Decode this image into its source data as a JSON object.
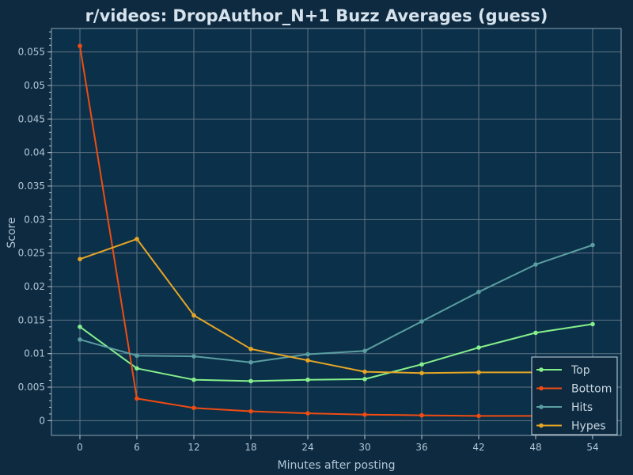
{
  "chart_data": {
    "type": "line",
    "title": "r/videos: DropAuthor_N+1 Buzz Averages (guess)",
    "xlabel": "Minutes after posting",
    "ylabel": "Score",
    "x": [
      0,
      6,
      12,
      18,
      24,
      30,
      36,
      42,
      48,
      54
    ],
    "xlim": [
      -3,
      57
    ],
    "ylim": [
      -0.0022,
      0.0585
    ],
    "yticks": [
      0,
      0.005,
      0.01,
      0.015,
      0.02,
      0.025,
      0.03,
      0.035,
      0.04,
      0.045,
      0.05,
      0.055
    ],
    "ytick_labels": [
      "0",
      "0.005",
      "0.01",
      "0.015",
      "0.02",
      "0.025",
      "0.03",
      "0.035",
      "0.04",
      "0.045",
      "0.05",
      "0.055"
    ],
    "xticks": [
      0,
      6,
      12,
      18,
      24,
      30,
      36,
      42,
      48,
      54
    ],
    "xtick_labels": [
      "0",
      "6",
      "12",
      "18",
      "24",
      "30",
      "36",
      "42",
      "48",
      "54"
    ],
    "grid": true,
    "legend_position": "bottom-right",
    "series": [
      {
        "name": "Top",
        "color": "#86f08c",
        "values": [
          0.014,
          0.0078,
          0.0061,
          0.0059,
          0.0061,
          0.0062,
          0.0084,
          0.0109,
          0.0131,
          0.0144
        ]
      },
      {
        "name": "Bottom",
        "color": "#f04c12",
        "values": [
          0.0559,
          0.0033,
          0.0019,
          0.0014,
          0.0011,
          0.0009,
          0.0008,
          0.0007,
          0.0007,
          0.0006
        ]
      },
      {
        "name": "Hits",
        "color": "#5b9ea2",
        "values": [
          0.0121,
          0.0097,
          0.0096,
          0.0087,
          0.0099,
          0.0104,
          0.0148,
          0.0192,
          0.0233,
          0.0262
        ]
      },
      {
        "name": "Hypes",
        "color": "#e6a626",
        "values": [
          0.0241,
          0.0271,
          0.0157,
          0.0107,
          0.009,
          0.0073,
          0.0071,
          0.0072,
          0.0072,
          0.0072
        ]
      }
    ]
  }
}
